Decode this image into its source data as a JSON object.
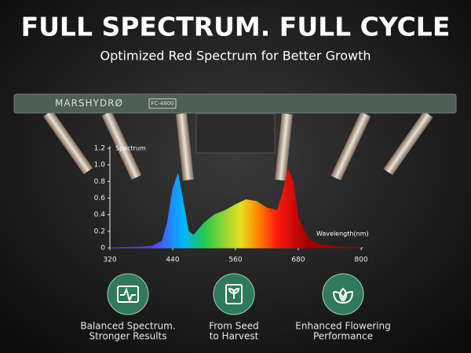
{
  "header": {
    "title": "FULL SPECTRUM. FULL CYCLE",
    "subtitle": "Optimized Red Spectrum for Better Growth"
  },
  "product": {
    "brand": "MARSHYDRØ",
    "model": "FC-4800"
  },
  "chart_data": {
    "type": "area",
    "y_label": "Spectrum",
    "x_label": "Wavelength(nm)",
    "x": [
      320,
      380,
      400,
      420,
      430,
      440,
      450,
      460,
      470,
      480,
      500,
      520,
      540,
      560,
      580,
      600,
      620,
      640,
      650,
      660,
      670,
      680,
      700,
      720,
      760,
      800
    ],
    "values": [
      0,
      0.01,
      0.02,
      0.08,
      0.3,
      0.7,
      0.89,
      0.55,
      0.2,
      0.15,
      0.3,
      0.4,
      0.45,
      0.52,
      0.58,
      0.56,
      0.48,
      0.45,
      0.65,
      0.95,
      0.8,
      0.35,
      0.1,
      0.04,
      0.01,
      0
    ],
    "xlim": [
      320,
      800
    ],
    "xticks": [
      320,
      440,
      560,
      680,
      800
    ],
    "ylim": [
      0,
      1.2
    ],
    "yticks": [
      0,
      0.2,
      0.4,
      0.6,
      0.8,
      {
        "value": 1,
        "label": "1.0"
      },
      1.2
    ]
  },
  "features": [
    {
      "lines": [
        "Balanced Spectrum.",
        "Stronger Results"
      ]
    },
    {
      "lines": [
        "From Seed",
        "to Harvest"
      ]
    },
    {
      "lines": [
        "Enhanced Flowering",
        "Performance"
      ]
    }
  ]
}
